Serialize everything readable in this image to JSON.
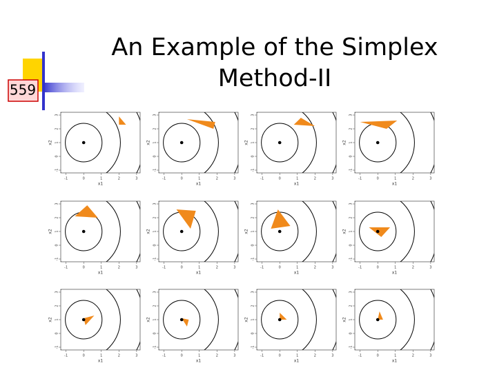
{
  "slide_number": "559",
  "title": [
    "An Example of the Simplex",
    "Method-II"
  ],
  "chart_data": [
    {
      "type": "simplex",
      "xlabel": "x1",
      "ylabel": "x2",
      "xlim": [
        -1.3,
        3.2
      ],
      "ylim": [
        -1.2,
        3.2
      ],
      "xticks": [
        -1,
        0,
        1,
        2,
        3
      ],
      "yticks": [
        -1,
        0,
        1,
        2,
        3
      ],
      "optimum": [
        0,
        1
      ],
      "color": "#f08a1c",
      "simplex": [
        [
          2.0,
          2.9
        ],
        [
          2.0,
          2.3
        ],
        [
          2.4,
          2.3
        ]
      ]
    },
    {
      "type": "simplex",
      "xlabel": "x1",
      "ylabel": "x2",
      "xlim": [
        -1.3,
        3.2
      ],
      "ylim": [
        -1.2,
        3.2
      ],
      "xticks": [
        -1,
        0,
        1,
        2,
        3
      ],
      "yticks": [
        -1,
        0,
        1,
        2,
        3
      ],
      "optimum": [
        0,
        1
      ],
      "color": "#f08a1c",
      "simplex": [
        [
          0.3,
          2.7
        ],
        [
          1.9,
          2.5
        ],
        [
          1.8,
          2.0
        ]
      ]
    },
    {
      "type": "simplex",
      "xlabel": "x1",
      "ylabel": "x2",
      "xlim": [
        -1.3,
        3.2
      ],
      "ylim": [
        -1.2,
        3.2
      ],
      "xticks": [
        -1,
        0,
        1,
        2,
        3
      ],
      "yticks": [
        -1,
        0,
        1,
        2,
        3
      ],
      "optimum": [
        0,
        1
      ],
      "color": "#f08a1c",
      "simplex": [
        [
          0.8,
          2.3
        ],
        [
          1.2,
          2.8
        ],
        [
          2.0,
          2.2
        ]
      ]
    },
    {
      "type": "simplex",
      "xlabel": "x1",
      "ylabel": "x2",
      "xlim": [
        -1.3,
        3.2
      ],
      "ylim": [
        -1.2,
        3.2
      ],
      "xticks": [
        -1,
        0,
        1,
        2,
        3
      ],
      "yticks": [
        -1,
        0,
        1,
        2,
        3
      ],
      "optimum": [
        0,
        1
      ],
      "color": "#f08a1c",
      "simplex": [
        [
          -1.0,
          2.5
        ],
        [
          1.1,
          2.6
        ],
        [
          0.5,
          2.0
        ]
      ]
    },
    {
      "type": "simplex",
      "xlabel": "x1",
      "ylabel": "x2",
      "xlim": [
        -1.3,
        3.2
      ],
      "ylim": [
        -1.2,
        3.2
      ],
      "xticks": [
        -1,
        0,
        1,
        2,
        3
      ],
      "yticks": [
        -1,
        0,
        1,
        2,
        3
      ],
      "optimum": [
        0,
        1
      ],
      "color": "#f08a1c",
      "simplex": [
        [
          -0.5,
          2.1
        ],
        [
          0.2,
          2.9
        ],
        [
          0.8,
          2.0
        ]
      ]
    },
    {
      "type": "simplex",
      "xlabel": "x1",
      "ylabel": "x2",
      "xlim": [
        -1.3,
        3.2
      ],
      "ylim": [
        -1.2,
        3.2
      ],
      "xticks": [
        -1,
        0,
        1,
        2,
        3
      ],
      "yticks": [
        -1,
        0,
        1,
        2,
        3
      ],
      "optimum": [
        0,
        1
      ],
      "color": "#f08a1c",
      "simplex": [
        [
          -0.3,
          2.6
        ],
        [
          0.8,
          2.5
        ],
        [
          0.5,
          1.2
        ]
      ]
    },
    {
      "type": "simplex",
      "xlabel": "x1",
      "ylabel": "x2",
      "xlim": [
        -1.3,
        3.2
      ],
      "ylim": [
        -1.2,
        3.2
      ],
      "xticks": [
        -1,
        0,
        1,
        2,
        3
      ],
      "yticks": [
        -1,
        0,
        1,
        2,
        3
      ],
      "optimum": [
        0,
        1
      ],
      "color": "#f08a1c",
      "simplex": [
        [
          -0.5,
          1.2
        ],
        [
          -0.1,
          2.6
        ],
        [
          0.6,
          1.4
        ]
      ]
    },
    {
      "type": "simplex",
      "xlabel": "x1",
      "ylabel": "x2",
      "xlim": [
        -1.3,
        3.2
      ],
      "ylim": [
        -1.2,
        3.2
      ],
      "xticks": [
        -1,
        0,
        1,
        2,
        3
      ],
      "yticks": [
        -1,
        0,
        1,
        2,
        3
      ],
      "optimum": [
        0,
        1
      ],
      "color": "#f08a1c",
      "simplex": [
        [
          -0.5,
          1.3
        ],
        [
          0.7,
          1.3
        ],
        [
          0.2,
          0.6
        ]
      ]
    },
    {
      "type": "simplex",
      "xlabel": "x1",
      "ylabel": "x2",
      "xlim": [
        -1.3,
        3.2
      ],
      "ylim": [
        -1.2,
        3.2
      ],
      "xticks": [
        -1,
        0,
        1,
        2,
        3
      ],
      "yticks": [
        -1,
        0,
        1,
        2,
        3
      ],
      "optimum": [
        0,
        1
      ],
      "color": "#f08a1c",
      "simplex": [
        [
          0.0,
          1.1
        ],
        [
          0.6,
          1.3
        ],
        [
          0.1,
          0.6
        ]
      ]
    },
    {
      "type": "simplex",
      "xlabel": "x1",
      "ylabel": "x2",
      "xlim": [
        -1.3,
        3.2
      ],
      "ylim": [
        -1.2,
        3.2
      ],
      "xticks": [
        -1,
        0,
        1,
        2,
        3
      ],
      "yticks": [
        -1,
        0,
        1,
        2,
        3
      ],
      "optimum": [
        0,
        1
      ],
      "color": "#f08a1c",
      "simplex": [
        [
          0.0,
          1.1
        ],
        [
          0.3,
          0.5
        ],
        [
          0.4,
          1.0
        ]
      ]
    },
    {
      "type": "simplex",
      "xlabel": "x1",
      "ylabel": "x2",
      "xlim": [
        -1.3,
        3.2
      ],
      "ylim": [
        -1.2,
        3.2
      ],
      "xticks": [
        -1,
        0,
        1,
        2,
        3
      ],
      "yticks": [
        -1,
        0,
        1,
        2,
        3
      ],
      "optimum": [
        0,
        1
      ],
      "color": "#f08a1c",
      "simplex": [
        [
          0.0,
          1.5
        ],
        [
          0.0,
          1.0
        ],
        [
          0.4,
          1.0
        ]
      ]
    },
    {
      "type": "simplex",
      "xlabel": "x1",
      "ylabel": "x2",
      "xlim": [
        -1.3,
        3.2
      ],
      "ylim": [
        -1.2,
        3.2
      ],
      "xticks": [
        -1,
        0,
        1,
        2,
        3
      ],
      "yticks": [
        -1,
        0,
        1,
        2,
        3
      ],
      "optimum": [
        0,
        1
      ],
      "color": "#f08a1c",
      "simplex": [
        [
          0.1,
          1.6
        ],
        [
          0.0,
          1.0
        ],
        [
          0.3,
          1.0
        ]
      ]
    }
  ]
}
